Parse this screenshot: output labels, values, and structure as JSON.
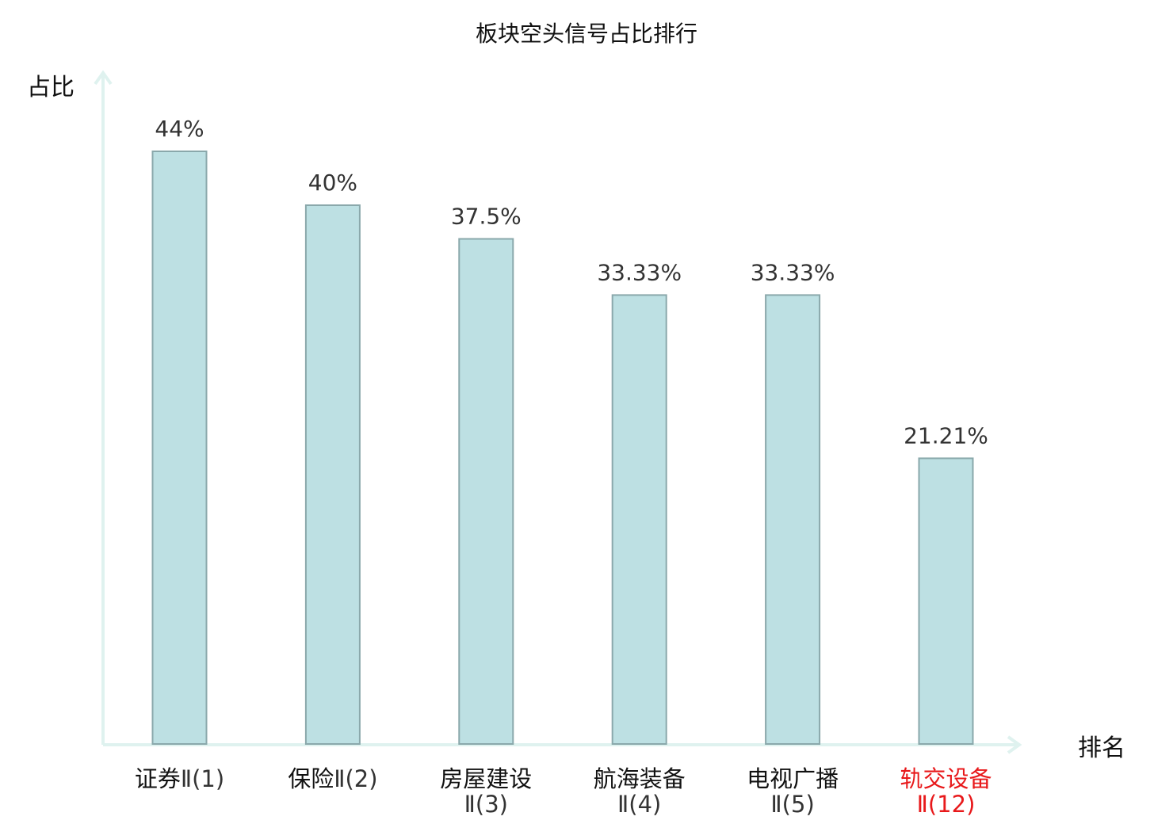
{
  "chart_data": {
    "type": "bar",
    "title": "板块空头信号占比排行",
    "xlabel": "排名",
    "ylabel": "占比",
    "ylim": [
      0,
      50
    ],
    "grid": false,
    "categories": [
      {
        "name": "证券",
        "suffix": "Ⅱ(1)",
        "highlight": false
      },
      {
        "name": "保险",
        "suffix": "Ⅱ(2)",
        "highlight": false
      },
      {
        "name": "房屋建设",
        "suffix": "Ⅱ(3)",
        "highlight": false
      },
      {
        "name": "航海装备",
        "suffix": "Ⅱ(4)",
        "highlight": false
      },
      {
        "name": "电视广播",
        "suffix": "Ⅱ(5)",
        "highlight": false
      },
      {
        "name": "轨交设备",
        "suffix": "Ⅱ(12)",
        "highlight": true
      }
    ],
    "values": [
      44,
      40,
      37.5,
      33.33,
      33.33,
      21.21
    ],
    "value_labels": [
      "44%",
      "40%",
      "37.5%",
      "33.33%",
      "33.33%",
      "21.21%"
    ],
    "colors": {
      "bar_fill": "#bde0e3",
      "bar_stroke": "#8aa8ab",
      "axis": "#dff2ef",
      "highlight": "#e8191b"
    }
  }
}
